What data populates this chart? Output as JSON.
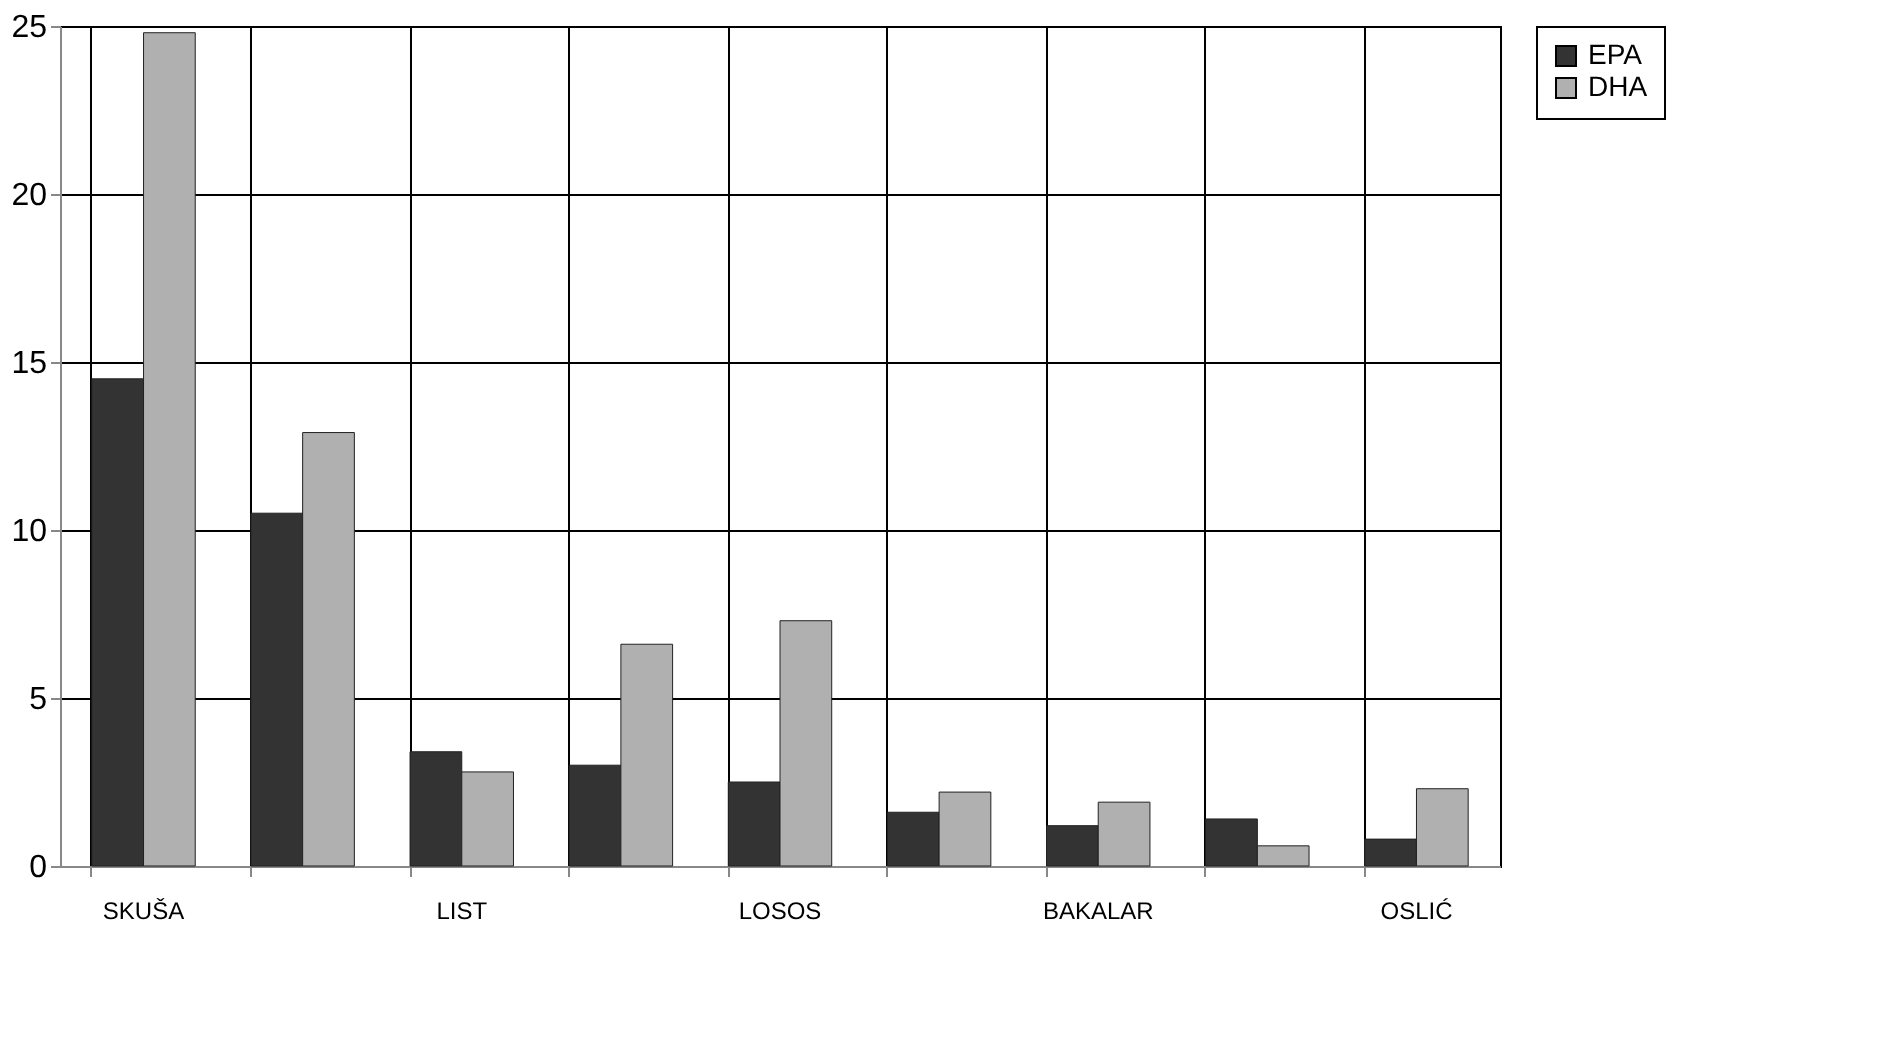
{
  "chart_data": {
    "type": "bar",
    "categories": [
      "SKUŠA",
      null,
      "LIST",
      null,
      "LOSOS",
      null,
      "BAKALAR",
      null,
      "OSLIĆ"
    ],
    "series": [
      {
        "name": "EPA",
        "color": "#333333",
        "values": [
          14.5,
          10.5,
          3.4,
          3.0,
          2.5,
          1.6,
          1.2,
          1.4,
          0.8
        ]
      },
      {
        "name": "DHA",
        "color": "#b0b0b0",
        "values": [
          24.8,
          12.9,
          2.8,
          6.6,
          7.3,
          2.2,
          1.9,
          0.6,
          2.3
        ]
      }
    ],
    "ylim": [
      0,
      25
    ],
    "yticks": [
      0,
      5,
      10,
      15,
      20,
      25
    ],
    "grid": true,
    "legend": "right"
  }
}
